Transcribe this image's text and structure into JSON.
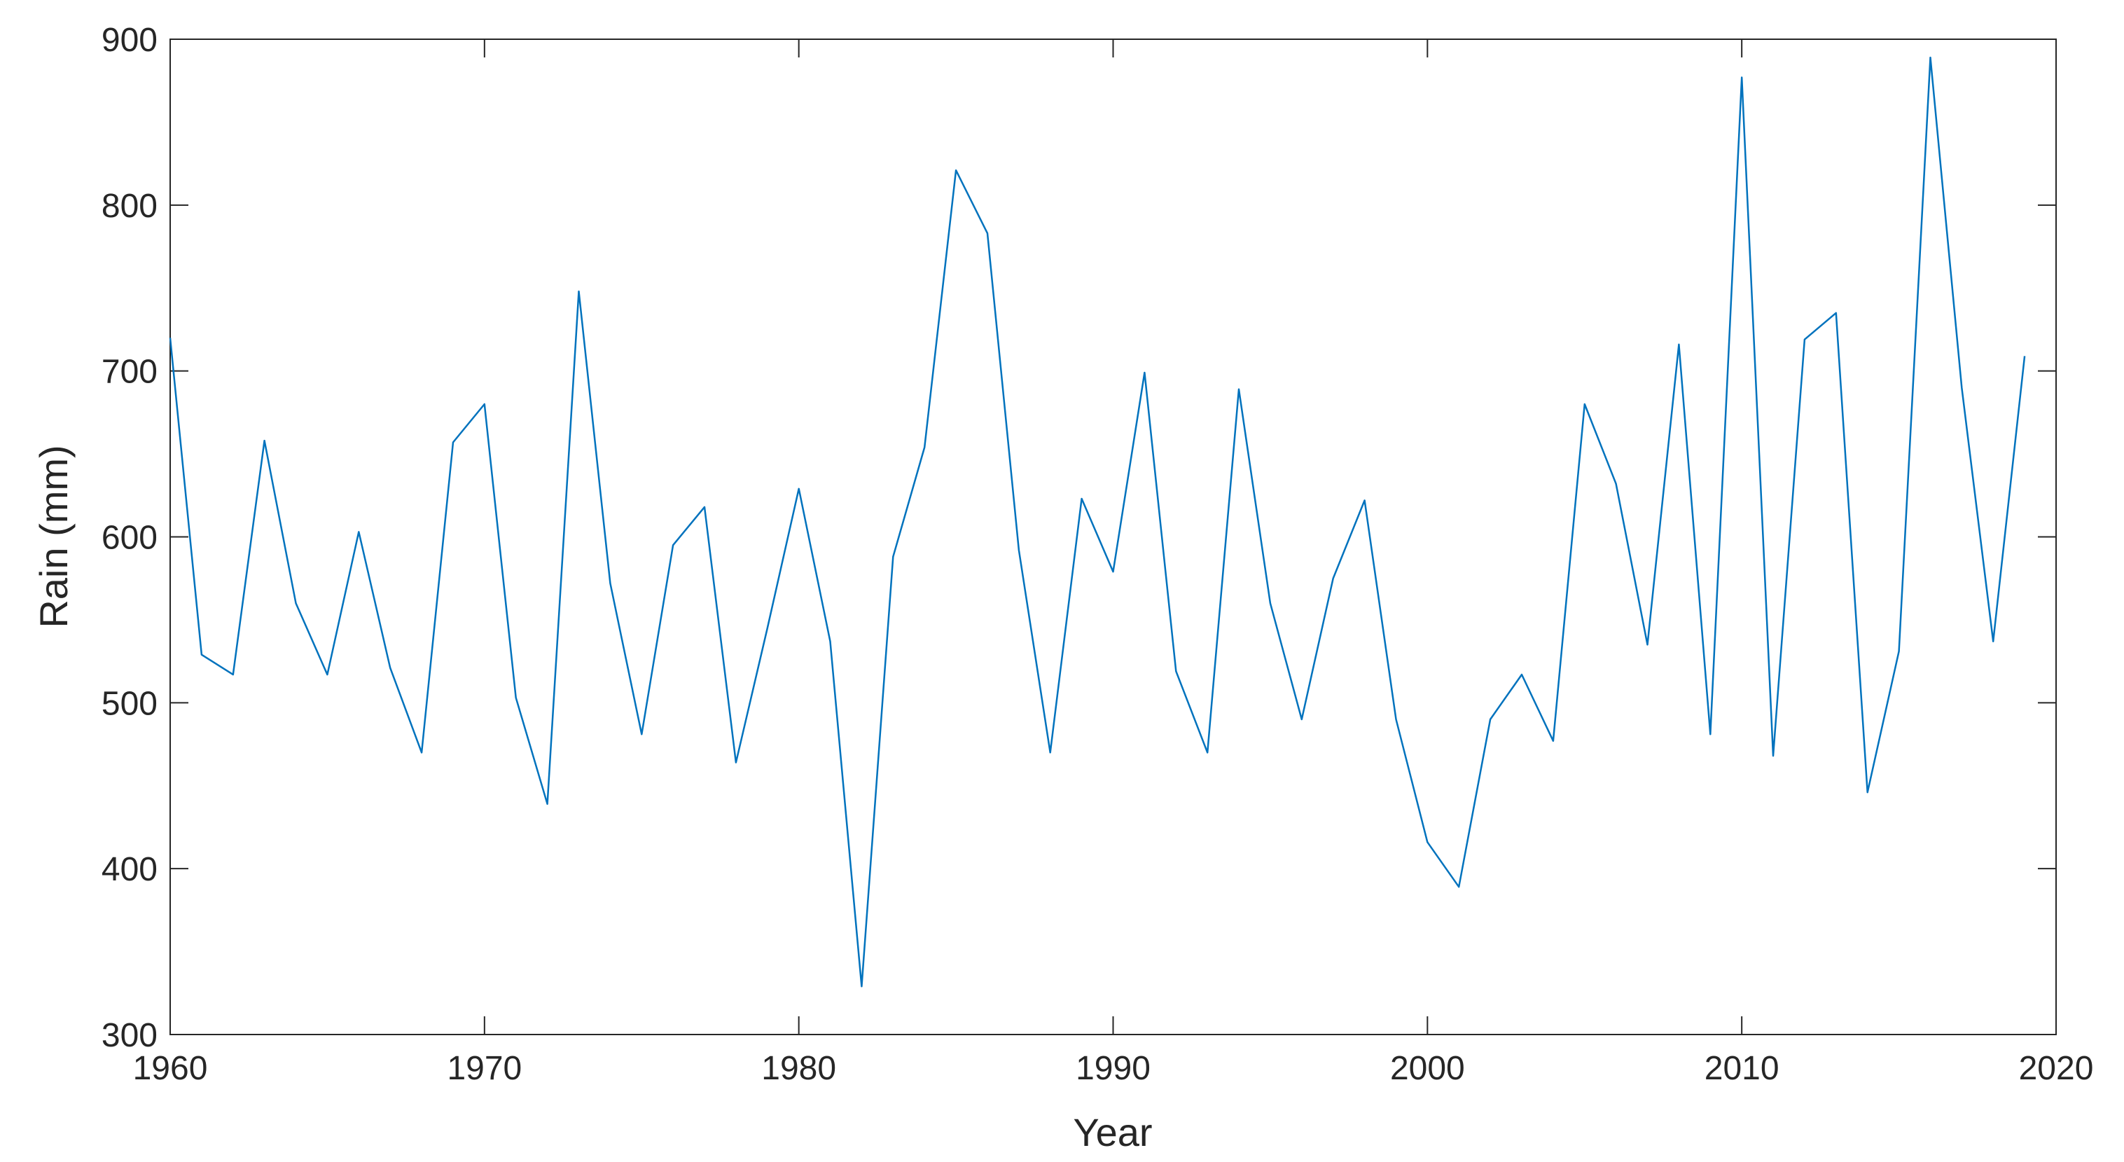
{
  "chart_data": {
    "type": "line",
    "title": "",
    "xlabel": "Year",
    "ylabel": "Rain (mm)",
    "xlim": [
      1960,
      2020
    ],
    "ylim": [
      300,
      900
    ],
    "xticks": [
      1960,
      1970,
      1980,
      1990,
      2000,
      2010,
      2020
    ],
    "yticks": [
      300,
      400,
      500,
      600,
      700,
      800,
      900
    ],
    "grid": false,
    "legend": "none",
    "line_color": "#0072BD",
    "series": [
      {
        "x": [
          1960,
          1961,
          1962,
          1963,
          1964,
          1965,
          1966,
          1967,
          1968,
          1969,
          1970,
          1971,
          1972,
          1973,
          1974,
          1975,
          1976,
          1977,
          1978,
          1979,
          1980,
          1981,
          1982,
          1983,
          1984,
          1985,
          1986,
          1987,
          1988,
          1989,
          1990,
          1991,
          1992,
          1993,
          1994,
          1995,
          1996,
          1997,
          1998,
          1999,
          2000,
          2001,
          2002,
          2003,
          2004,
          2005,
          2006,
          2007,
          2008,
          2009,
          2010,
          2011,
          2012,
          2013,
          2014,
          2015,
          2016,
          2017,
          2018,
          2019
        ],
        "values": [
          720,
          529,
          517,
          658,
          560,
          517,
          603,
          521,
          470,
          657,
          680,
          503,
          439,
          748,
          572,
          481,
          595,
          618,
          464,
          545,
          629,
          537,
          329,
          588,
          654,
          821,
          783,
          592,
          470,
          623,
          579,
          699,
          519,
          470,
          689,
          560,
          490,
          575,
          622,
          490,
          416,
          389,
          490,
          517,
          477,
          680,
          632,
          535,
          716,
          481,
          877,
          468,
          719,
          735,
          446,
          531,
          889,
          690,
          537,
          709
        ]
      }
    ]
  }
}
